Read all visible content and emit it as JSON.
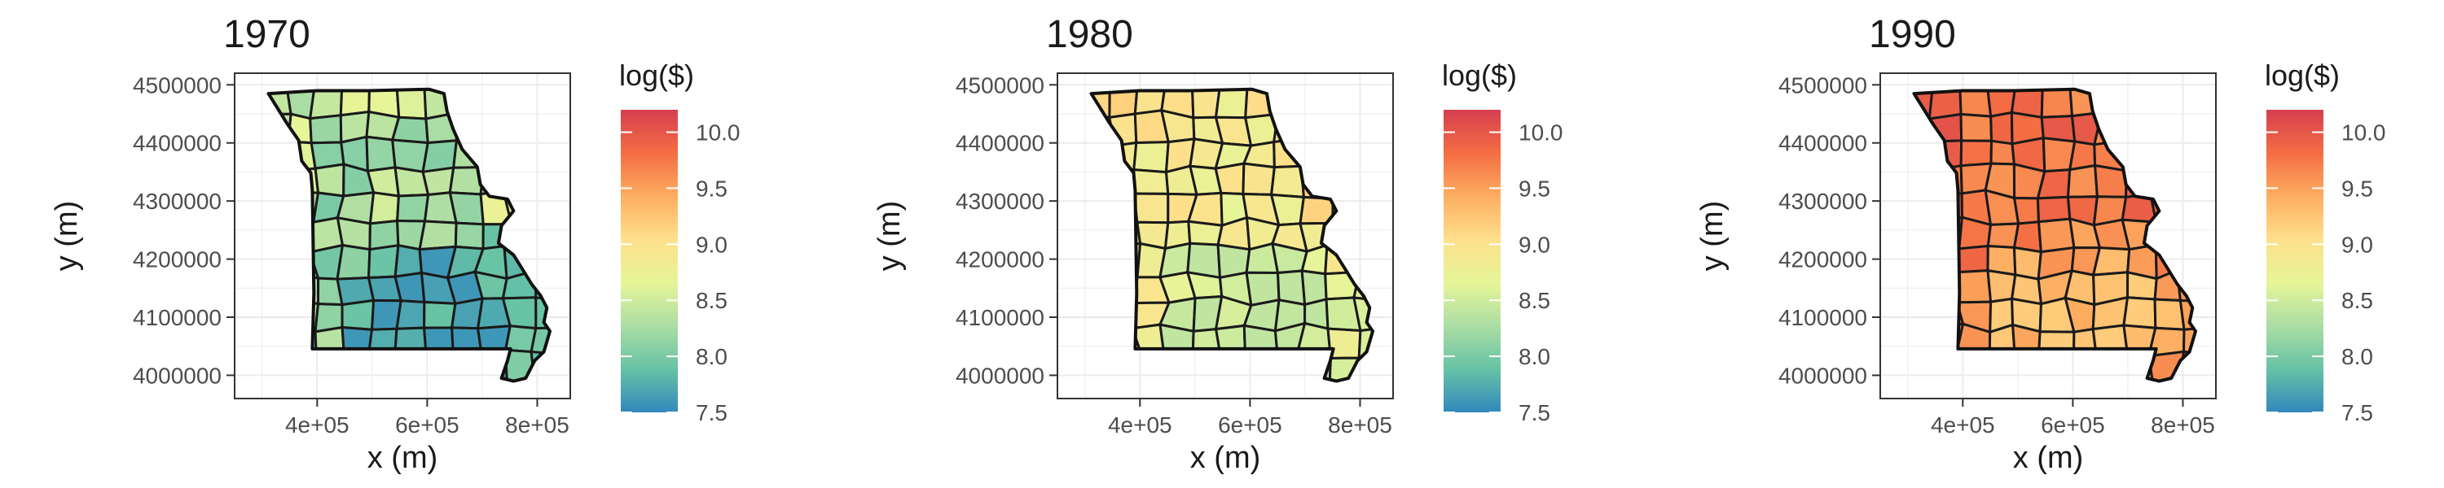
{
  "figure": {
    "panels": [
      {
        "title": "1970",
        "ylabel": "y (m)",
        "xlabel": "x (m)",
        "yticks": [
          "4500000",
          "4400000",
          "4300000",
          "4200000",
          "4100000",
          "4000000"
        ],
        "xticks": [
          "4e+05",
          "6e+05",
          "8e+05"
        ],
        "legend_title": "log($)",
        "legend_ticks": [
          "10.0",
          "9.5",
          "9.0",
          "8.5",
          "8.0",
          "7.5"
        ],
        "fill_range": [
          7.6,
          8.9
        ]
      },
      {
        "title": "1980",
        "ylabel": "y (m)",
        "xlabel": "x (m)",
        "yticks": [
          "4500000",
          "4400000",
          "4300000",
          "4200000",
          "4100000",
          "4000000"
        ],
        "xticks": [
          "4e+05",
          "6e+05",
          "8e+05"
        ],
        "legend_title": "log($)",
        "legend_ticks": [
          "10.0",
          "9.5",
          "9.0",
          "8.5",
          "8.0",
          "7.5"
        ],
        "fill_range": [
          8.4,
          9.3
        ]
      },
      {
        "title": "1990",
        "ylabel": "y (m)",
        "xlabel": "x (m)",
        "yticks": [
          "4500000",
          "4400000",
          "4300000",
          "4200000",
          "4100000",
          "4000000"
        ],
        "xticks": [
          "4e+05",
          "6e+05",
          "8e+05"
        ],
        "legend_title": "log($)",
        "legend_ticks": [
          "10.0",
          "9.5",
          "9.0",
          "8.5",
          "8.0",
          "7.5"
        ],
        "fill_range": [
          9.2,
          10.2
        ]
      }
    ],
    "palette": [
      "#3288bd",
      "#66c2a5",
      "#abdda4",
      "#e6f598",
      "#fee08b",
      "#fdae61",
      "#f46d43",
      "#d53e4f"
    ],
    "legend_range": [
      7.5,
      10.2
    ]
  }
}
